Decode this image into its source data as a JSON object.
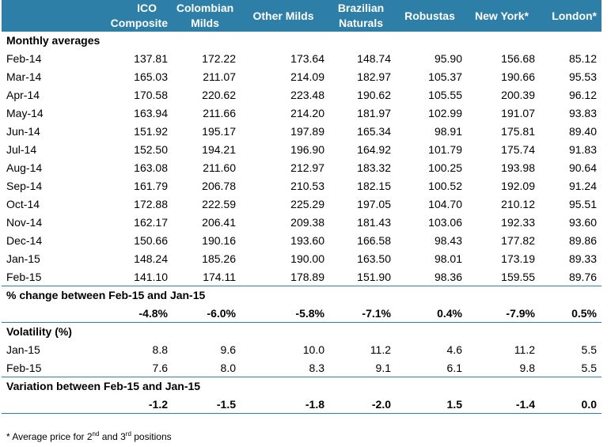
{
  "headers": {
    "ico": [
      "ICO",
      "Composite"
    ],
    "colombian": [
      "Colombian",
      "Milds"
    ],
    "other": "Other Milds",
    "brazilian": [
      "Brazilian",
      "Naturals"
    ],
    "robustas": "Robustas",
    "newyork": "New York*",
    "london": "London*"
  },
  "sections": {
    "monthly": "Monthly averages",
    "change": "% change between Feb-15 and Jan-15",
    "volatility": "Volatility (%)",
    "variation": "Variation between Feb-15 and Jan-15"
  },
  "monthly_rows": [
    {
      "label": "Feb-14",
      "values": [
        "137.81",
        "172.22",
        "173.64",
        "148.74",
        "95.90",
        "156.68",
        "85.12"
      ]
    },
    {
      "label": "Mar-14",
      "values": [
        "165.03",
        "211.07",
        "214.09",
        "182.97",
        "105.37",
        "190.66",
        "95.53"
      ]
    },
    {
      "label": "Apr-14",
      "values": [
        "170.58",
        "220.62",
        "223.48",
        "190.62",
        "105.55",
        "200.39",
        "96.12"
      ]
    },
    {
      "label": "May-14",
      "values": [
        "163.94",
        "211.66",
        "214.20",
        "181.97",
        "102.99",
        "191.07",
        "93.83"
      ]
    },
    {
      "label": "Jun-14",
      "values": [
        "151.92",
        "195.17",
        "197.89",
        "165.34",
        "98.91",
        "175.81",
        "89.40"
      ]
    },
    {
      "label": "Jul-14",
      "values": [
        "152.50",
        "194.21",
        "196.90",
        "164.92",
        "101.79",
        "175.74",
        "91.83"
      ]
    },
    {
      "label": "Aug-14",
      "values": [
        "163.08",
        "211.60",
        "212.97",
        "183.32",
        "100.25",
        "193.98",
        "90.64"
      ]
    },
    {
      "label": "Sep-14",
      "values": [
        "161.79",
        "206.78",
        "210.53",
        "182.15",
        "100.52",
        "192.09",
        "91.24"
      ]
    },
    {
      "label": "Oct-14",
      "values": [
        "172.88",
        "222.59",
        "225.29",
        "197.05",
        "104.70",
        "210.12",
        "95.51"
      ]
    },
    {
      "label": "Nov-14",
      "values": [
        "162.17",
        "206.41",
        "209.38",
        "181.43",
        "103.06",
        "192.33",
        "93.60"
      ]
    },
    {
      "label": "Dec-14",
      "values": [
        "150.66",
        "190.16",
        "193.60",
        "166.58",
        "98.43",
        "177.82",
        "89.86"
      ]
    },
    {
      "label": "Jan-15",
      "values": [
        "148.24",
        "185.26",
        "190.00",
        "163.50",
        "98.01",
        "173.19",
        "89.33"
      ]
    },
    {
      "label": "Feb-15",
      "values": [
        "141.10",
        "174.11",
        "178.89",
        "151.90",
        "98.36",
        "159.55",
        "89.76"
      ]
    }
  ],
  "change_values": [
    "-4.8%",
    "-6.0%",
    "-5.8%",
    "-7.1%",
    "0.4%",
    "-7.9%",
    "0.5%"
  ],
  "volatility_rows": [
    {
      "label": "Jan-15",
      "values": [
        "8.8",
        "9.6",
        "10.0",
        "11.2",
        "4.6",
        "11.2",
        "5.5"
      ]
    },
    {
      "label": "Feb-15",
      "values": [
        "7.6",
        "8.0",
        "8.3",
        "9.1",
        "6.1",
        "9.8",
        "5.5"
      ]
    }
  ],
  "variation_values": [
    "-1.2",
    "-1.5",
    "-1.8",
    "-2.0",
    "1.5",
    "-1.4",
    "0.0"
  ],
  "footnote": {
    "pre": "* Average price for 2",
    "sup1": "nd",
    "mid": " and 3",
    "sup2": "rd",
    "post": " positions"
  }
}
